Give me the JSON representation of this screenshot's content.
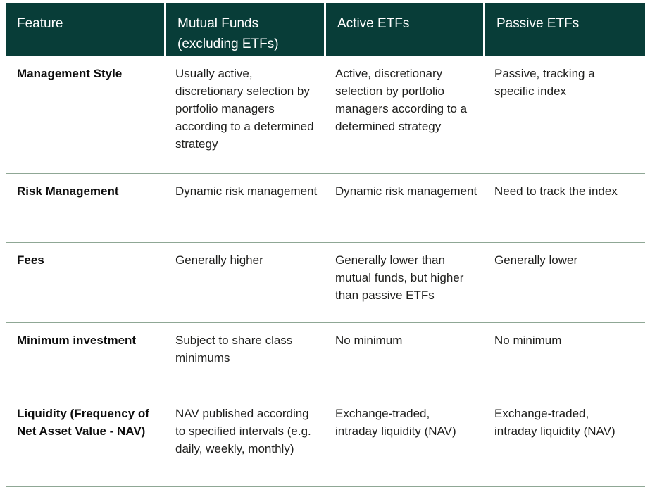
{
  "colors": {
    "header_background": "#083d38",
    "header_text": "#ffffff",
    "body_text": "#1f1f1d",
    "feature_label_text": "#0d0d0d",
    "row_divider": "#8fa795",
    "page_background": "#ffffff"
  },
  "table": {
    "header": [
      "Feature",
      "Mutual Funds\n(excluding ETFs)",
      "Active ETFs",
      "Passive ETFs"
    ],
    "rows": [
      {
        "feature": "Management Style",
        "mutual_funds": "Usually active,\ndiscretionary selection by\nportfolio managers\naccording to a determined\nstrategy",
        "active_etfs": "Active, discretionary\nselection by portfolio\nmanagers according to a\ndetermined strategy",
        "passive_etfs": "Passive, tracking a\nspecific index"
      },
      {
        "feature": "Risk Management",
        "mutual_funds": "Dynamic risk management",
        "active_etfs": "Dynamic risk management",
        "passive_etfs": "Need to track the index"
      },
      {
        "feature": "Fees",
        "mutual_funds": "Generally higher",
        "active_etfs": "Generally lower than\nmutual funds, but higher\nthan passive ETFs",
        "passive_etfs": "Generally lower"
      },
      {
        "feature": "Minimum investment",
        "mutual_funds": "Subject to share class\nminimums",
        "active_etfs": "No minimum",
        "passive_etfs": "No minimum"
      },
      {
        "feature": "Liquidity (Frequency of\nNet Asset Value - NAV)",
        "mutual_funds": "NAV published according\nto specified intervals (e.g.\ndaily, weekly, monthly)",
        "active_etfs": "Exchange-traded,\nintraday liquidity (NAV)",
        "passive_etfs": "Exchange-traded,\nintraday liquidity (NAV)"
      }
    ]
  }
}
